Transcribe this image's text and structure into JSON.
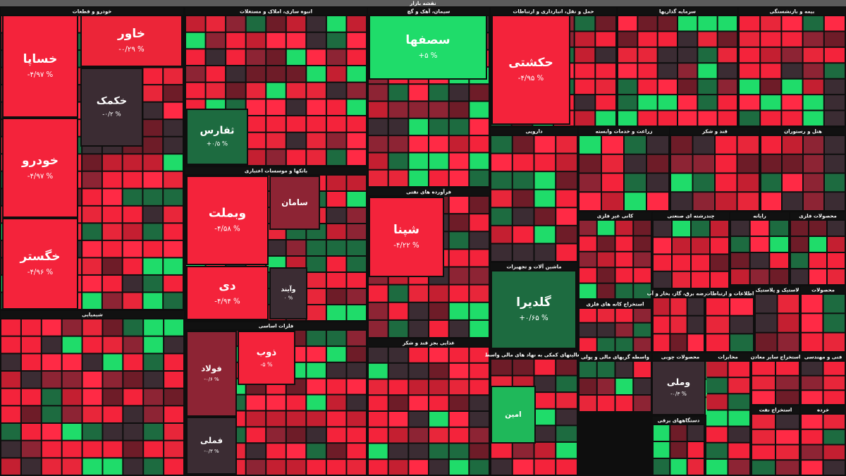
{
  "title": "نقشه بازار",
  "sectors": [
    {
      "name": "خودرو و قطعات"
    },
    {
      "name": "انبوه سازی، املاک و مستغلات"
    },
    {
      "name": "سیمان، آهک و گچ"
    },
    {
      "name": "حمل و نقل، انبارداری و ارتباطات"
    },
    {
      "name": "سرمایه گذاریها"
    },
    {
      "name": "بیمه و بازنشستگی"
    },
    {
      "name": "بانکها و موسسات اعتباری"
    },
    {
      "name": "فرآورده های نفتی"
    },
    {
      "name": "دارویی"
    },
    {
      "name": "زراعت و خدمات وابسته"
    },
    {
      "name": "قند و شکر"
    },
    {
      "name": "هتل و رستوران"
    },
    {
      "name": "ماشین آلات و تجهیزات"
    },
    {
      "name": "شیمیایی"
    },
    {
      "name": "فلزات اساسی"
    },
    {
      "name": "غذایی بجز قند و شکر"
    },
    {
      "name": "کانی غیر فلزی"
    },
    {
      "name": "چندرشته ای صنعتی"
    },
    {
      "name": "رایانه"
    },
    {
      "name": "محصولات فلزی"
    },
    {
      "name": "استخراج کانه های فلزی"
    },
    {
      "name": "عرضه برق، گاز، بخار و آب"
    },
    {
      "name": "اطلاعات و ارتباطات"
    },
    {
      "name": "لاستیک و پلاستیک"
    },
    {
      "name": "محصولات"
    },
    {
      "name": "فعالیتهای کمکی به نهاد های مالی واسط"
    },
    {
      "name": "واسطه گریهای مالی و پولی"
    },
    {
      "name": "محصولات چوبی"
    },
    {
      "name": "دستگاههای برقی"
    },
    {
      "name": "مخابرات"
    },
    {
      "name": "استخراج سایر معادن"
    },
    {
      "name": "فنی و مهندسی"
    },
    {
      "name": "استخراج نفت"
    },
    {
      "name": "خرده"
    }
  ],
  "tiles": [
    {
      "label": "خساپا",
      "change": "-۴/۹۷ %",
      "color": "#f4233b"
    },
    {
      "label": "خودرو",
      "change": "-۴/۹۷ %",
      "color": "#f4233b"
    },
    {
      "label": "خگستر",
      "change": "-۴/۹۶ %",
      "color": "#f4233b"
    },
    {
      "label": "خکمک",
      "change": "-۰/۲ %",
      "color": "#3b2c33"
    },
    {
      "label": "خاور",
      "change": "-۰/۲۹ %",
      "color": "#ec2538"
    },
    {
      "label": "ثفارس",
      "change": "+۰/۵ %",
      "color": "#1d6b40"
    },
    {
      "label": "سصفها",
      "change": "+۵ %",
      "color": "#1fdc6a"
    },
    {
      "label": "حکشتی",
      "change": "-۴/۹۵ %",
      "color": "#f4233b"
    },
    {
      "label": "وبملت",
      "change": "-۴/۵۸ %",
      "color": "#f4233b"
    },
    {
      "label": "دی",
      "change": "-۴/۹۴ %",
      "color": "#f4233b"
    },
    {
      "label": "سامان",
      "color": "#8d2434"
    },
    {
      "label": "وآیند",
      "change": "۰ %",
      "color": "#3b2c33"
    },
    {
      "label": "شپنا",
      "change": "-۴/۲۲ %",
      "color": "#f4233b"
    },
    {
      "label": "گلدیرا",
      "change": "+۰/۶۵ %",
      "color": "#1d6b40"
    },
    {
      "label": "ذوب",
      "change": "-۵ %",
      "color": "#f4233b"
    },
    {
      "label": "فولاد",
      "change": "-۰/۶ %",
      "color": "#8d2434"
    },
    {
      "label": "فملی",
      "change": "-۰/۳ %",
      "color": "#3b2c33"
    },
    {
      "label": "وملی",
      "change": "-۰/۳ %",
      "color": "#3b2c33"
    },
    {
      "label": "امین",
      "color": "#1fb85a"
    }
  ]
}
